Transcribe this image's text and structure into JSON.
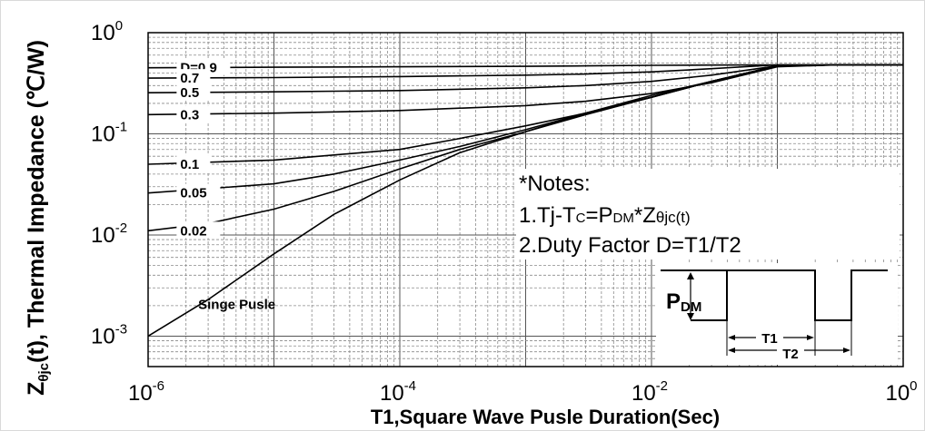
{
  "chart_data": {
    "type": "line",
    "x_scale": "log",
    "y_scale": "log",
    "xlim": [
      1e-06,
      1
    ],
    "ylim": [
      0.0005,
      1
    ],
    "grid": true,
    "xlabel": "T1,Square Wave Pusle Duration(Sec)",
    "ylabel_parts": [
      "Z",
      "θjc",
      "(t), Thermal Impedance (℃/W)"
    ],
    "x_ticks": [
      {
        "base": "10",
        "exp": "-6",
        "value": 1e-06
      },
      {
        "base": "10",
        "exp": "-4",
        "value": 0.0001
      },
      {
        "base": "10",
        "exp": "-2",
        "value": 0.01
      },
      {
        "base": "10",
        "exp": "0",
        "value": 1
      }
    ],
    "y_ticks": [
      {
        "base": "10",
        "exp": "0",
        "value": 1
      },
      {
        "base": "10",
        "exp": "-1",
        "value": 0.1
      },
      {
        "base": "10",
        "exp": "-2",
        "value": 0.01
      },
      {
        "base": "10",
        "exp": "-3",
        "value": 0.001
      }
    ],
    "series": [
      {
        "name": "D=0.9",
        "x": [
          1e-06,
          1e-05,
          0.0001,
          0.001,
          0.003,
          0.01,
          0.03,
          0.1,
          0.3,
          1
        ],
        "y": [
          0.45,
          0.455,
          0.46,
          0.465,
          0.47,
          0.475,
          0.478,
          0.48,
          0.48,
          0.48
        ]
      },
      {
        "name": "0.7",
        "x": [
          1e-06,
          1e-05,
          0.0001,
          0.001,
          0.003,
          0.01,
          0.03,
          0.1,
          0.3,
          1
        ],
        "y": [
          0.355,
          0.36,
          0.368,
          0.38,
          0.39,
          0.41,
          0.44,
          0.48,
          0.48,
          0.48
        ]
      },
      {
        "name": "0.5",
        "x": [
          1e-06,
          1e-05,
          0.0001,
          0.001,
          0.003,
          0.01,
          0.03,
          0.1,
          0.3,
          1
        ],
        "y": [
          0.255,
          0.26,
          0.268,
          0.285,
          0.3,
          0.33,
          0.38,
          0.47,
          0.48,
          0.48
        ]
      },
      {
        "name": "0.3",
        "x": [
          1e-06,
          1e-05,
          0.0001,
          0.001,
          0.003,
          0.01,
          0.03,
          0.1,
          0.3,
          1
        ],
        "y": [
          0.155,
          0.16,
          0.17,
          0.19,
          0.21,
          0.25,
          0.32,
          0.46,
          0.48,
          0.48
        ]
      },
      {
        "name": "0.1",
        "x": [
          1e-06,
          1e-05,
          0.0001,
          0.0003,
          0.001,
          0.003,
          0.01,
          0.03,
          0.1,
          0.3,
          1
        ],
        "y": [
          0.05,
          0.055,
          0.07,
          0.09,
          0.12,
          0.16,
          0.24,
          0.33,
          0.47,
          0.48,
          0.48
        ]
      },
      {
        "name": "0.05",
        "x": [
          1e-06,
          1e-05,
          3e-05,
          0.0001,
          0.0003,
          0.001,
          0.003,
          0.01,
          0.03,
          0.1,
          0.3,
          1
        ],
        "y": [
          0.026,
          0.032,
          0.04,
          0.055,
          0.075,
          0.11,
          0.16,
          0.23,
          0.33,
          0.47,
          0.48,
          0.48
        ]
      },
      {
        "name": "0.02",
        "x": [
          1e-06,
          3e-06,
          1e-05,
          3e-05,
          0.0001,
          0.0003,
          0.001,
          0.003,
          0.01,
          0.03,
          0.1,
          0.3,
          1
        ],
        "y": [
          0.011,
          0.013,
          0.018,
          0.027,
          0.045,
          0.07,
          0.105,
          0.16,
          0.23,
          0.33,
          0.47,
          0.48,
          0.48
        ]
      },
      {
        "name": "Singe Pusle",
        "x": [
          1e-06,
          3e-06,
          1e-05,
          3e-05,
          0.0001,
          0.0003,
          0.001,
          0.003,
          0.01,
          0.03,
          0.1,
          0.3,
          1
        ],
        "y": [
          0.001,
          0.0023,
          0.0065,
          0.016,
          0.035,
          0.065,
          0.105,
          0.155,
          0.23,
          0.33,
          0.47,
          0.48,
          0.48
        ]
      }
    ],
    "notes": {
      "title": "*Notes:",
      "line1": {
        "a": "1.Tj-T",
        "b": "C",
        "c": "=P",
        "d": "DM",
        "e": "*Z",
        "f": "θjc(t)"
      },
      "line2": "2.Duty Factor D=T1/T2"
    },
    "inset": {
      "pdm_main": "P",
      "pdm_sub": "DM",
      "t1": "T1",
      "t2": "T2"
    }
  }
}
